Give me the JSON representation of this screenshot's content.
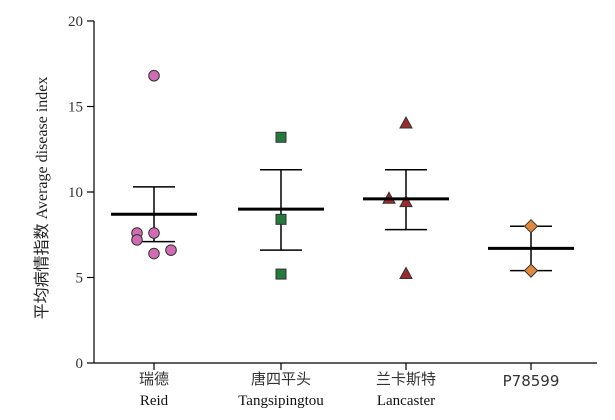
{
  "chart_data": {
    "type": "scatter",
    "ylabel": "平均病情指数 Average disease index",
    "ylim": [
      0,
      20
    ],
    "yticks": [
      0,
      5,
      10,
      15,
      20
    ],
    "grid": false,
    "groups": [
      {
        "label_cn": "瑞德",
        "label_en": "Reid",
        "marker": "circle",
        "color": "#d16bb4",
        "points": [
          16.8,
          7.6,
          7.6,
          7.2,
          6.6,
          6.4
        ],
        "mean": 8.7,
        "err_upper": 10.3,
        "err_lower": 7.1
      },
      {
        "label_cn": "唐四平头",
        "label_en": "Tangsipingtou",
        "marker": "square",
        "color": "#237a3c",
        "points": [
          13.2,
          8.4,
          5.2
        ],
        "mean": 9.0,
        "err_upper": 11.3,
        "err_lower": 6.6
      },
      {
        "label_cn": "兰卡斯特",
        "label_en": "Lancaster",
        "marker": "triangle",
        "color": "#9b2a2a",
        "points": [
          14.0,
          9.6,
          9.4,
          5.2
        ],
        "mean": 9.6,
        "err_upper": 11.3,
        "err_lower": 7.8
      },
      {
        "label_cn": "",
        "label_en": "P78599",
        "marker": "diamond",
        "color": "#e28a3b",
        "points": [
          8.0,
          5.4
        ],
        "mean": 6.7,
        "err_upper": 8.0,
        "err_lower": 5.4
      }
    ]
  }
}
